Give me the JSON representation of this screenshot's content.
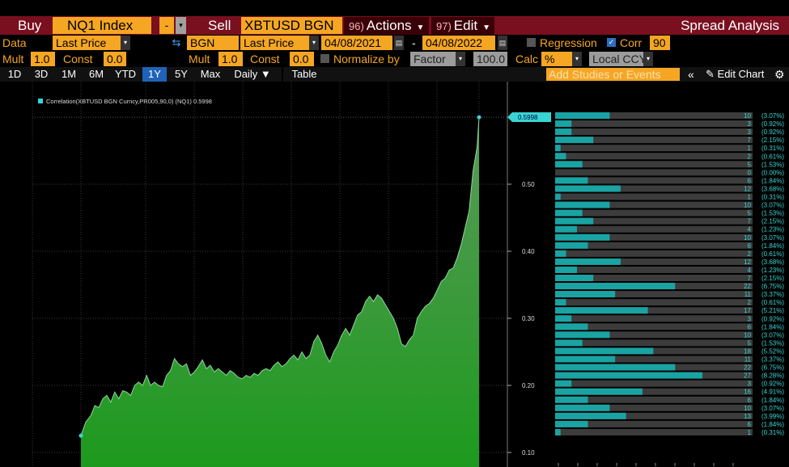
{
  "header": {
    "buy_label": "Buy",
    "buy_ticker": "NQ1 Index",
    "buy_dash": "-",
    "sell_label": "Sell",
    "sell_ticker": "XBTUSD BGN C",
    "actions": {
      "num": "96)",
      "label": "Actions"
    },
    "edit": {
      "num": "97)",
      "label": "Edit"
    },
    "title": "Spread Analysis"
  },
  "settings": {
    "data_label": "Data",
    "data_value": "Last Price",
    "source_value": "BGN",
    "field_value": "Last Price",
    "start_date": "04/08/2021",
    "dash": "-",
    "end_date": "04/08/2022",
    "regression_label": "Regression",
    "corr_label": "Corr",
    "corr_value": "90",
    "mult_label": "Mult",
    "mult1_value": "1.0",
    "const_label": "Const",
    "const1_value": "0.0",
    "mult2_value": "1.0",
    "const2_value": "0.0",
    "normalize_label": "Normalize by",
    "factor_value": "Factor",
    "factor_num": "100.0",
    "calc_label": "Calc",
    "calc_value": "%",
    "ccy_value": "Local CCY"
  },
  "toolbar": {
    "tabs": [
      "1D",
      "3D",
      "1M",
      "6M",
      "YTD",
      "1Y",
      "5Y",
      "Max"
    ],
    "active_tab": "1Y",
    "interval": "Daily ▼",
    "table_label": "Table",
    "studies_placeholder": "Add Studies or Events",
    "edit_chart_label": "Edit Chart"
  },
  "colors": {
    "header_red": "#7a0f1f",
    "amber": "#f5a623",
    "active_blue": "#1e63b8",
    "line_cyan": "#3ad4d4",
    "histogram_cyan": "#1aa3a3",
    "histogram_grey": "#3c3c3c"
  },
  "chart_data": {
    "type": "area",
    "legend": "Correlation(XBTUSD BGN Curncy,PR005,90,0) (NQ1) 0.5998",
    "last_value_label": "0.5998",
    "last_value": 0.5998,
    "yaxis_ticks": [
      "0.50",
      "0.40",
      "0.30",
      "0.20",
      "0.10"
    ],
    "ylim": [
      0.08,
      0.63
    ],
    "x_range": [
      0,
      100
    ],
    "series": [
      {
        "points": [
          [
            0,
            0.125
          ],
          [
            1.2,
            0.145
          ],
          [
            2.5,
            0.155
          ],
          [
            3.5,
            0.17
          ],
          [
            4.5,
            0.167
          ],
          [
            5.5,
            0.18
          ],
          [
            6.5,
            0.185
          ],
          [
            7.5,
            0.175
          ],
          [
            8.5,
            0.19
          ],
          [
            9.5,
            0.18
          ],
          [
            10.5,
            0.192
          ],
          [
            11.5,
            0.19
          ],
          [
            12.5,
            0.185
          ],
          [
            13.5,
            0.2
          ],
          [
            14.5,
            0.205
          ],
          [
            15.5,
            0.2
          ],
          [
            16.5,
            0.215
          ],
          [
            17.5,
            0.2
          ],
          [
            18.5,
            0.205
          ],
          [
            19.5,
            0.2
          ],
          [
            20.5,
            0.198
          ],
          [
            21.5,
            0.215
          ],
          [
            22.5,
            0.222
          ],
          [
            23.5,
            0.24
          ],
          [
            24.5,
            0.232
          ],
          [
            25.5,
            0.228
          ],
          [
            26.5,
            0.232
          ],
          [
            27.5,
            0.215
          ],
          [
            28.5,
            0.22
          ],
          [
            29.5,
            0.228
          ],
          [
            30.5,
            0.238
          ],
          [
            31.5,
            0.225
          ],
          [
            32.5,
            0.23
          ],
          [
            33.5,
            0.22
          ],
          [
            34.5,
            0.225
          ],
          [
            35.5,
            0.22
          ],
          [
            36.5,
            0.215
          ],
          [
            37.5,
            0.222
          ],
          [
            38.5,
            0.218
          ],
          [
            39.5,
            0.212
          ],
          [
            40.5,
            0.21
          ],
          [
            41.5,
            0.215
          ],
          [
            42.5,
            0.212
          ],
          [
            43.5,
            0.218
          ],
          [
            44.5,
            0.215
          ],
          [
            45.5,
            0.222
          ],
          [
            46.5,
            0.225
          ],
          [
            47.5,
            0.222
          ],
          [
            48.5,
            0.23
          ],
          [
            49.5,
            0.235
          ],
          [
            50.5,
            0.228
          ],
          [
            51.5,
            0.232
          ],
          [
            52.5,
            0.24
          ],
          [
            53.5,
            0.245
          ],
          [
            54.5,
            0.238
          ],
          [
            55.5,
            0.25
          ],
          [
            56.5,
            0.24
          ],
          [
            57.5,
            0.245
          ],
          [
            58.5,
            0.265
          ],
          [
            59.5,
            0.275
          ],
          [
            60.5,
            0.262
          ],
          [
            61.5,
            0.245
          ],
          [
            62.5,
            0.235
          ],
          [
            63.5,
            0.25
          ],
          [
            64.5,
            0.26
          ],
          [
            65.5,
            0.275
          ],
          [
            66.5,
            0.285
          ],
          [
            67.5,
            0.275
          ],
          [
            68.5,
            0.29
          ],
          [
            69.5,
            0.305
          ],
          [
            70.5,
            0.31
          ],
          [
            71.5,
            0.325
          ],
          [
            72.5,
            0.333
          ],
          [
            73.5,
            0.325
          ],
          [
            74.5,
            0.335
          ],
          [
            75.5,
            0.33
          ],
          [
            76.5,
            0.32
          ],
          [
            77.5,
            0.31
          ],
          [
            78.5,
            0.3
          ],
          [
            79.5,
            0.285
          ],
          [
            80.5,
            0.262
          ],
          [
            81.5,
            0.258
          ],
          [
            82.5,
            0.268
          ],
          [
            83.5,
            0.275
          ],
          [
            84.5,
            0.3
          ],
          [
            85.5,
            0.31
          ],
          [
            86.5,
            0.318
          ],
          [
            87.5,
            0.322
          ],
          [
            88.5,
            0.33
          ],
          [
            89.5,
            0.342
          ],
          [
            90.5,
            0.355
          ],
          [
            91.5,
            0.36
          ],
          [
            92.5,
            0.372
          ],
          [
            93.5,
            0.375
          ],
          [
            94.5,
            0.39
          ],
          [
            95.5,
            0.41
          ],
          [
            96.5,
            0.435
          ],
          [
            97.5,
            0.46
          ],
          [
            98.5,
            0.52
          ],
          [
            99.5,
            0.555
          ],
          [
            100,
            0.5998
          ]
        ]
      }
    ],
    "histogram": [
      {
        "count": 10,
        "pct": "(3.07%)"
      },
      {
        "count": 3,
        "pct": "(0.92%)"
      },
      {
        "count": 3,
        "pct": "(0.92%)"
      },
      {
        "count": 7,
        "pct": "(2.15%)"
      },
      {
        "count": 1,
        "pct": "(0.31%)"
      },
      {
        "count": 2,
        "pct": "(0.61%)"
      },
      {
        "count": 5,
        "pct": "(1.53%)"
      },
      {
        "count": 0,
        "pct": "(0.00%)"
      },
      {
        "count": 6,
        "pct": "(1.84%)"
      },
      {
        "count": 12,
        "pct": "(3.68%)"
      },
      {
        "count": 1,
        "pct": "(0.31%)"
      },
      {
        "count": 10,
        "pct": "(3.07%)"
      },
      {
        "count": 5,
        "pct": "(1.53%)"
      },
      {
        "count": 7,
        "pct": "(2.15%)"
      },
      {
        "count": 4,
        "pct": "(1.23%)"
      },
      {
        "count": 10,
        "pct": "(3.07%)"
      },
      {
        "count": 6,
        "pct": "(1.84%)"
      },
      {
        "count": 2,
        "pct": "(0.61%)"
      },
      {
        "count": 12,
        "pct": "(3.68%)"
      },
      {
        "count": 4,
        "pct": "(1.23%)"
      },
      {
        "count": 7,
        "pct": "(2.15%)"
      },
      {
        "count": 22,
        "pct": "(6.75%)"
      },
      {
        "count": 11,
        "pct": "(3.37%)"
      },
      {
        "count": 2,
        "pct": "(0.61%)"
      },
      {
        "count": 17,
        "pct": "(5.21%)"
      },
      {
        "count": 3,
        "pct": "(0.92%)"
      },
      {
        "count": 6,
        "pct": "(1.84%)"
      },
      {
        "count": 10,
        "pct": "(3.07%)"
      },
      {
        "count": 5,
        "pct": "(1.53%)"
      },
      {
        "count": 18,
        "pct": "(5.52%)"
      },
      {
        "count": 11,
        "pct": "(3.37%)"
      },
      {
        "count": 22,
        "pct": "(6.75%)"
      },
      {
        "count": 27,
        "pct": "(8.28%)"
      },
      {
        "count": 3,
        "pct": "(0.92%)"
      },
      {
        "count": 16,
        "pct": "(4.91%)"
      },
      {
        "count": 6,
        "pct": "(1.84%)"
      },
      {
        "count": 10,
        "pct": "(3.07%)"
      },
      {
        "count": 13,
        "pct": "(3.99%)"
      },
      {
        "count": 6,
        "pct": "(1.84%)"
      },
      {
        "count": 1,
        "pct": "(0.31%)"
      }
    ]
  }
}
